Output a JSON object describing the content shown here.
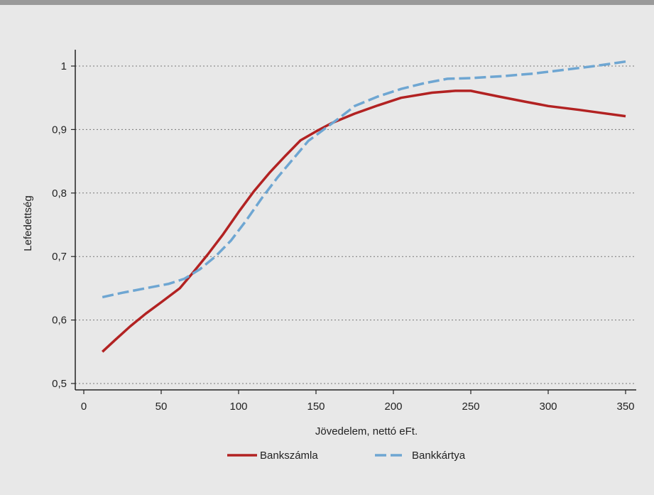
{
  "chart_data": {
    "type": "line",
    "xlabel": "Jövedelem, nettó eFt.",
    "ylabel": "Lefedettség",
    "xlim": [
      0,
      350
    ],
    "ylim": [
      0.5,
      1.0
    ],
    "x_ticks": [
      "0",
      "50",
      "100",
      "150",
      "200",
      "250",
      "300",
      "350"
    ],
    "x_tick_values": [
      0,
      50,
      100,
      150,
      200,
      250,
      300,
      350
    ],
    "y_ticks": [
      "0,5",
      "0,6",
      "0,7",
      "0,8",
      "0,9",
      "1"
    ],
    "y_tick_values": [
      0.5,
      0.6,
      0.7,
      0.8,
      0.9,
      1.0
    ],
    "grid": "horizontal-dotted",
    "legend_position": "bottom",
    "series": [
      {
        "name": "Bankszámla",
        "color": "#b22222",
        "dash": "solid",
        "x": [
          12,
          20,
          30,
          40,
          50,
          62,
          70,
          80,
          90,
          100,
          110,
          120,
          130,
          140,
          150,
          160,
          175,
          190,
          205,
          225,
          240,
          250,
          268,
          285,
          300,
          320,
          335,
          350
        ],
        "y": [
          0.55,
          0.568,
          0.59,
          0.61,
          0.628,
          0.65,
          0.673,
          0.703,
          0.735,
          0.77,
          0.803,
          0.832,
          0.858,
          0.883,
          0.897,
          0.91,
          0.925,
          0.938,
          0.95,
          0.958,
          0.961,
          0.961,
          0.952,
          0.944,
          0.937,
          0.931,
          0.926,
          0.921
        ]
      },
      {
        "name": "Bankkártya",
        "color": "#6ea6d2",
        "dash": "dashed",
        "x": [
          12,
          25,
          40,
          55,
          65,
          75,
          85,
          95,
          105,
          115,
          125,
          135,
          145,
          155,
          165,
          175,
          190,
          205,
          220,
          235,
          250,
          270,
          290,
          310,
          330,
          350
        ],
        "y": [
          0.636,
          0.643,
          0.65,
          0.657,
          0.665,
          0.68,
          0.7,
          0.725,
          0.757,
          0.792,
          0.824,
          0.853,
          0.882,
          0.9,
          0.918,
          0.937,
          0.952,
          0.964,
          0.973,
          0.98,
          0.981,
          0.984,
          0.988,
          0.994,
          1.0,
          1.007
        ]
      }
    ]
  }
}
